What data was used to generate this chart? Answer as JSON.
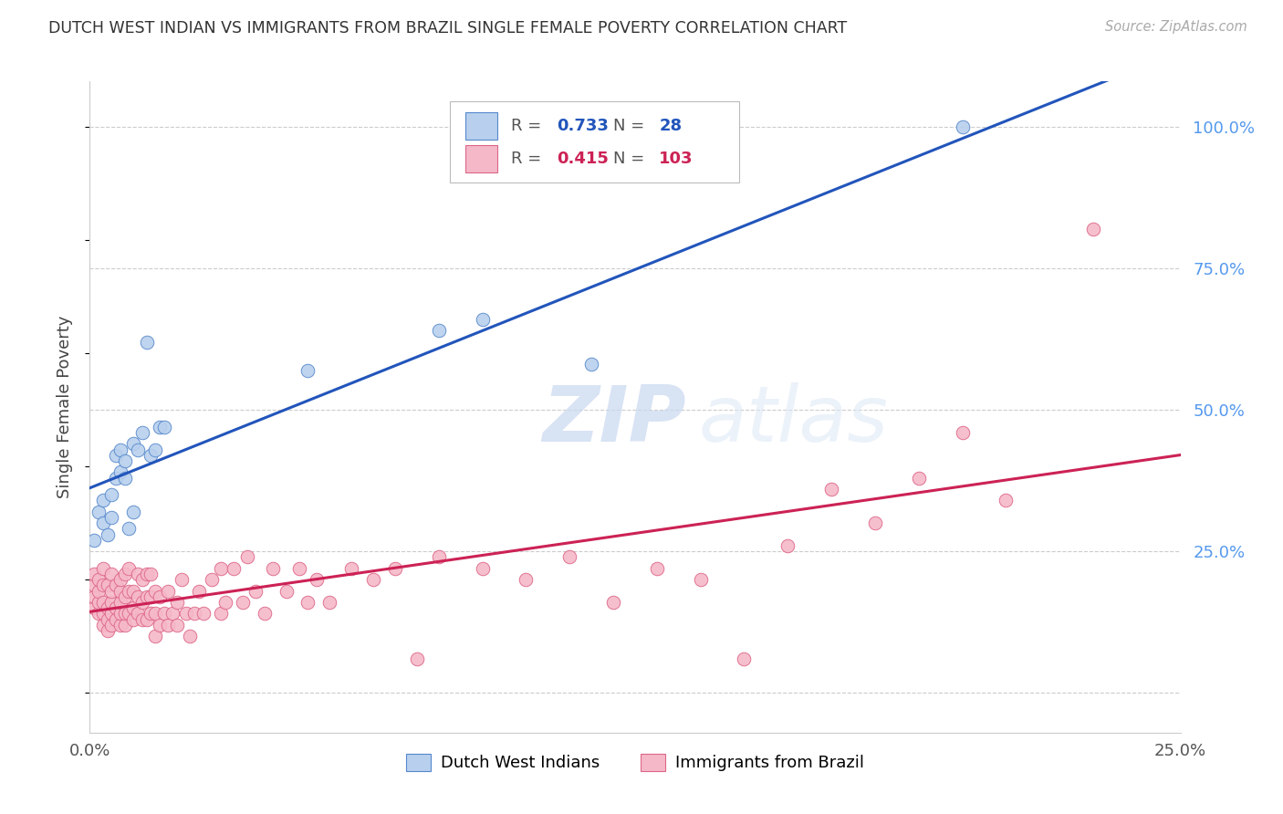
{
  "title": "DUTCH WEST INDIAN VS IMMIGRANTS FROM BRAZIL SINGLE FEMALE POVERTY CORRELATION CHART",
  "source": "Source: ZipAtlas.com",
  "ylabel": "Single Female Poverty",
  "yticks": [
    0.0,
    0.25,
    0.5,
    0.75,
    1.0
  ],
  "ytick_labels": [
    "",
    "25.0%",
    "50.0%",
    "75.0%",
    "100.0%"
  ],
  "xtick_labels": [
    "0.0%",
    "25.0%"
  ],
  "xmin": 0.0,
  "xmax": 0.25,
  "ymin": -0.07,
  "ymax": 1.08,
  "legend_label_blue": "Dutch West Indians",
  "legend_label_pink": "Immigrants from Brazil",
  "blue_color": "#b8d0ed",
  "pink_color": "#f5b8c8",
  "blue_edge": "#5588cc",
  "pink_edge": "#dd6688",
  "blue_line_color": "#2255bb",
  "pink_line_color": "#cc2255",
  "watermark_zip": "ZIP",
  "watermark_atlas": "atlas",
  "background_color": "#ffffff",
  "grid_color": "#cccccc",
  "blue_R": "0.733",
  "blue_N": "28",
  "pink_R": "0.415",
  "pink_N": "103",
  "blue_scatter_x": [
    0.001,
    0.002,
    0.003,
    0.003,
    0.004,
    0.005,
    0.005,
    0.006,
    0.006,
    0.007,
    0.007,
    0.008,
    0.008,
    0.009,
    0.01,
    0.01,
    0.011,
    0.012,
    0.013,
    0.014,
    0.015,
    0.016,
    0.017,
    0.05,
    0.08,
    0.09,
    0.115,
    0.2
  ],
  "blue_scatter_y": [
    0.27,
    0.32,
    0.3,
    0.34,
    0.28,
    0.31,
    0.35,
    0.38,
    0.42,
    0.39,
    0.43,
    0.38,
    0.41,
    0.29,
    0.32,
    0.44,
    0.43,
    0.46,
    0.62,
    0.42,
    0.43,
    0.47,
    0.47,
    0.57,
    0.64,
    0.66,
    0.58,
    1.0
  ],
  "pink_scatter_x": [
    0.001,
    0.001,
    0.001,
    0.001,
    0.002,
    0.002,
    0.002,
    0.002,
    0.003,
    0.003,
    0.003,
    0.003,
    0.003,
    0.004,
    0.004,
    0.004,
    0.004,
    0.005,
    0.005,
    0.005,
    0.005,
    0.005,
    0.006,
    0.006,
    0.006,
    0.007,
    0.007,
    0.007,
    0.007,
    0.007,
    0.008,
    0.008,
    0.008,
    0.008,
    0.009,
    0.009,
    0.009,
    0.01,
    0.01,
    0.01,
    0.011,
    0.011,
    0.011,
    0.012,
    0.012,
    0.012,
    0.013,
    0.013,
    0.013,
    0.014,
    0.014,
    0.014,
    0.015,
    0.015,
    0.015,
    0.016,
    0.016,
    0.017,
    0.018,
    0.018,
    0.019,
    0.02,
    0.02,
    0.021,
    0.022,
    0.023,
    0.024,
    0.025,
    0.026,
    0.028,
    0.03,
    0.03,
    0.031,
    0.033,
    0.035,
    0.036,
    0.038,
    0.04,
    0.042,
    0.045,
    0.048,
    0.05,
    0.052,
    0.055,
    0.06,
    0.065,
    0.07,
    0.075,
    0.08,
    0.09,
    0.1,
    0.11,
    0.12,
    0.13,
    0.14,
    0.15,
    0.16,
    0.17,
    0.18,
    0.19,
    0.2,
    0.21,
    0.23
  ],
  "pink_scatter_y": [
    0.15,
    0.17,
    0.19,
    0.21,
    0.14,
    0.16,
    0.18,
    0.2,
    0.12,
    0.14,
    0.16,
    0.19,
    0.22,
    0.11,
    0.13,
    0.15,
    0.19,
    0.12,
    0.14,
    0.16,
    0.18,
    0.21,
    0.13,
    0.15,
    0.19,
    0.12,
    0.14,
    0.16,
    0.18,
    0.2,
    0.12,
    0.14,
    0.17,
    0.21,
    0.14,
    0.18,
    0.22,
    0.13,
    0.15,
    0.18,
    0.14,
    0.17,
    0.21,
    0.13,
    0.16,
    0.2,
    0.13,
    0.17,
    0.21,
    0.14,
    0.17,
    0.21,
    0.1,
    0.14,
    0.18,
    0.12,
    0.17,
    0.14,
    0.12,
    0.18,
    0.14,
    0.12,
    0.16,
    0.2,
    0.14,
    0.1,
    0.14,
    0.18,
    0.14,
    0.2,
    0.14,
    0.22,
    0.16,
    0.22,
    0.16,
    0.24,
    0.18,
    0.14,
    0.22,
    0.18,
    0.22,
    0.16,
    0.2,
    0.16,
    0.22,
    0.2,
    0.22,
    0.06,
    0.24,
    0.22,
    0.2,
    0.24,
    0.16,
    0.22,
    0.2,
    0.06,
    0.26,
    0.36,
    0.3,
    0.38,
    0.46,
    0.34,
    0.82
  ]
}
